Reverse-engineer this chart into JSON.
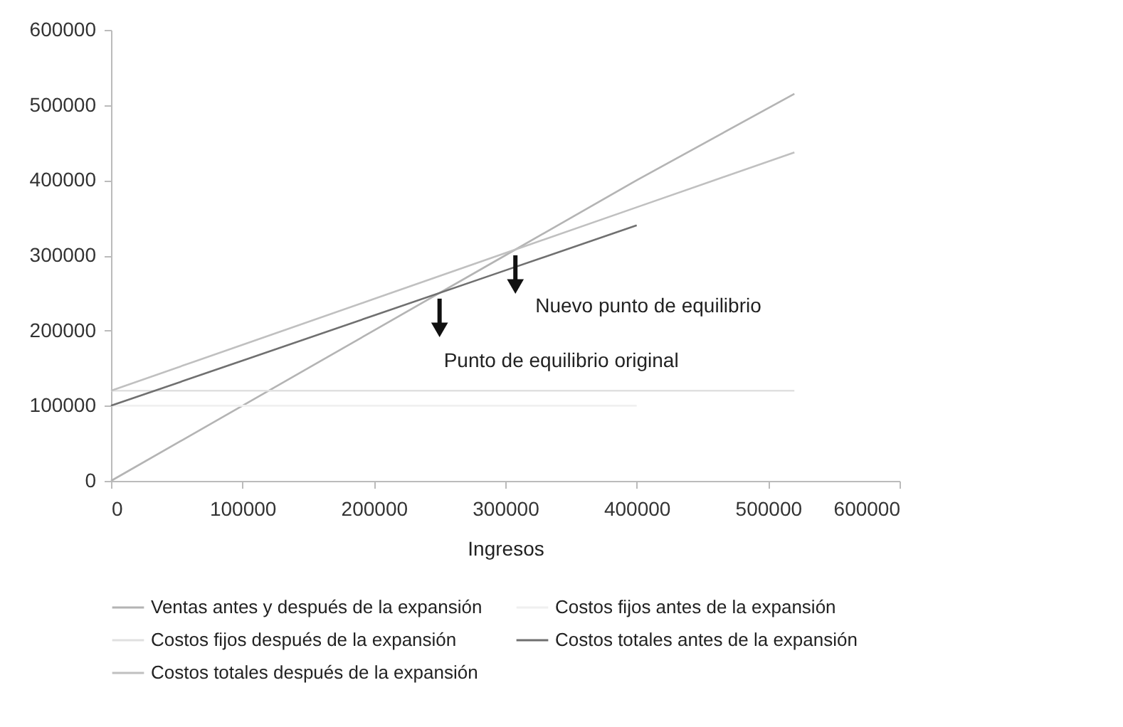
{
  "chart_data": {
    "type": "line",
    "xlabel": "Ingresos",
    "xlim": [
      0,
      600000
    ],
    "xticks": [
      0,
      100000,
      200000,
      300000,
      400000,
      500000,
      600000
    ],
    "ylim": [
      0,
      600000
    ],
    "yticks": [
      0,
      100000,
      200000,
      300000,
      400000,
      500000,
      600000
    ],
    "grid": false,
    "legend": "bottom",
    "line_style": "solid",
    "marker": "none",
    "series": [
      {
        "name": "Ventas antes y después de la expansión",
        "color": "#b4b4b4",
        "x": [
          0,
          100000,
          200000,
          300000,
          400000,
          520000
        ],
        "values": [
          0,
          100000,
          200000,
          300000,
          400000,
          515000
        ]
      },
      {
        "name": "Costos fijos antes de la expansión",
        "color": "#f0f0f0",
        "x": [
          0,
          400000
        ],
        "values": [
          100000,
          100000
        ]
      },
      {
        "name": "Costos fijos después de la expansión",
        "color": "#e0e0e0",
        "x": [
          0,
          520000
        ],
        "values": [
          120000,
          120000
        ]
      },
      {
        "name": "Costos totales antes de la expansión",
        "color": "#707070",
        "x": [
          0,
          100000,
          200000,
          300000,
          400000
        ],
        "values": [
          100000,
          160000,
          220000,
          280000,
          340000
        ]
      },
      {
        "name": "Costos totales después de la expansión",
        "color": "#c0c0c0",
        "x": [
          0,
          100000,
          200000,
          300000,
          400000,
          520000
        ],
        "values": [
          120000,
          181000,
          242000,
          303000,
          364000,
          437000
        ]
      }
    ],
    "annotations": [
      {
        "text": "Punto de equilibrio original",
        "x": 250000,
        "y": 250000
      },
      {
        "text": "Nuevo punto de equilibrio",
        "x": 307700,
        "y": 307700
      }
    ]
  }
}
